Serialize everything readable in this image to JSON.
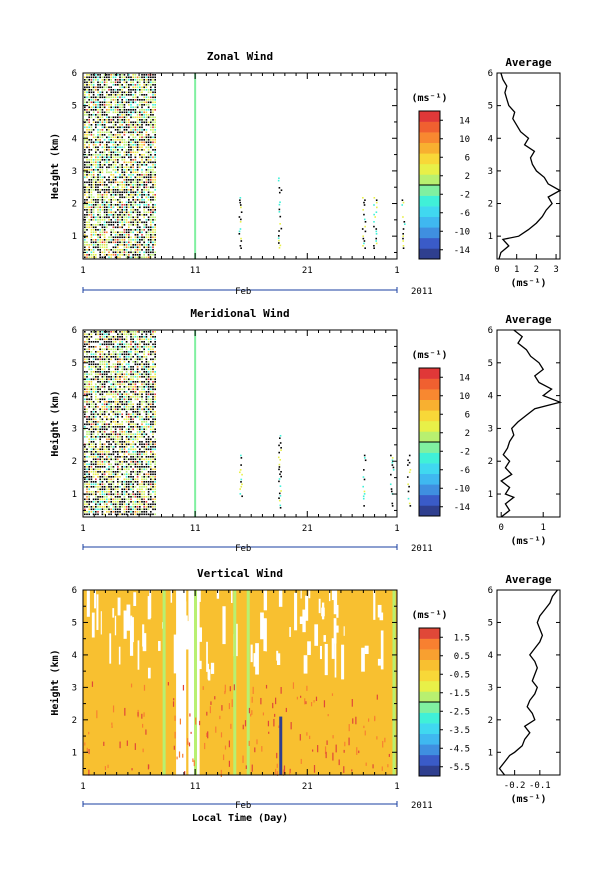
{
  "chart_data": [
    {
      "type": "heatmap",
      "panel": "zonal",
      "title": "Zonal Wind",
      "ylabel": "Height (km)",
      "xlabel": "",
      "ylim": [
        0.3,
        6
      ],
      "yticks": [
        "1",
        "2",
        "3",
        "4",
        "5",
        "6"
      ],
      "xticks": [
        "1",
        "11",
        "21",
        "1"
      ],
      "month_label": "Feb",
      "year_label": "2011",
      "colorbar": {
        "unit_label": "(ms⁻¹)",
        "ticks": [
          "14",
          "10",
          "6",
          "2",
          "-2",
          "-6",
          "-10",
          "-14"
        ],
        "range": [
          -16,
          16
        ],
        "colors": [
          "#2f3f8f",
          "#3a5bc8",
          "#3f8fe0",
          "#3fb8f0",
          "#40d8f0",
          "#40f0d8",
          "#80f0a0",
          "#b8f070",
          "#e8f048",
          "#f8d838",
          "#f8b030",
          "#f88830",
          "#f06030",
          "#e03838"
        ]
      },
      "data_notes": {
        "dense_until_day": 7.5,
        "isolated_spikes_days": [
          11,
          15,
          18.5,
          26,
          27,
          29.5
        ]
      },
      "profile": {
        "title": "Average",
        "xlabel": "(ms⁻¹)",
        "xticks": [
          "0",
          "1",
          "2",
          "3"
        ],
        "xlim": [
          0,
          3.2
        ],
        "yticks": [
          "1",
          "2",
          "3",
          "4",
          "5",
          "6"
        ],
        "heights": [
          0.3,
          0.5,
          0.7,
          0.9,
          1.0,
          1.2,
          1.4,
          1.6,
          1.8,
          2.0,
          2.2,
          2.4,
          2.6,
          2.8,
          3.0,
          3.2,
          3.4,
          3.6,
          3.8,
          4.0,
          4.2,
          4.4,
          4.6,
          4.8,
          5.0,
          5.2,
          5.4,
          5.6,
          5.8,
          6.0
        ],
        "values": [
          0.1,
          0.2,
          0.6,
          0.3,
          1.1,
          1.6,
          2.0,
          2.3,
          2.5,
          2.8,
          2.6,
          3.2,
          2.6,
          2.4,
          2.0,
          1.8,
          1.7,
          1.9,
          1.4,
          1.6,
          1.2,
          1.0,
          0.8,
          0.9,
          0.6,
          0.5,
          0.4,
          0.5,
          0.3,
          0.2
        ]
      }
    },
    {
      "type": "heatmap",
      "panel": "meridional",
      "title": "Meridional Wind",
      "ylabel": "Height (km)",
      "xlabel": "",
      "ylim": [
        0.3,
        6
      ],
      "yticks": [
        "1",
        "2",
        "3",
        "4",
        "5",
        "6"
      ],
      "xticks": [
        "1",
        "11",
        "21",
        "1"
      ],
      "month_label": "Feb",
      "year_label": "2011",
      "colorbar": {
        "unit_label": "(ms⁻¹)",
        "ticks": [
          "14",
          "10",
          "6",
          "2",
          "-2",
          "-6",
          "-10",
          "-14"
        ],
        "range": [
          -16,
          16
        ],
        "colors": [
          "#2f3f8f",
          "#3a5bc8",
          "#3f8fe0",
          "#3fb8f0",
          "#40d8f0",
          "#40f0d8",
          "#80f0a0",
          "#b8f070",
          "#e8f048",
          "#f8d838",
          "#f8b030",
          "#f88830",
          "#f06030",
          "#e03838"
        ]
      },
      "data_notes": {
        "dense_until_day": 7.5,
        "isolated_spikes_days": [
          11,
          15,
          18.5,
          26,
          28.5,
          30
        ]
      },
      "profile": {
        "title": "Average",
        "xlabel": "(ms⁻¹)",
        "xticks": [
          "0",
          "1"
        ],
        "xlim": [
          -0.1,
          1.4
        ],
        "yticks": [
          "1",
          "2",
          "3",
          "4",
          "5",
          "6"
        ],
        "heights": [
          0.3,
          0.5,
          0.7,
          0.9,
          1.0,
          1.2,
          1.4,
          1.6,
          1.8,
          2.0,
          2.2,
          2.4,
          2.6,
          2.8,
          3.0,
          3.2,
          3.4,
          3.6,
          3.8,
          4.0,
          4.2,
          4.4,
          4.6,
          4.8,
          5.0,
          5.2,
          5.4,
          5.6,
          5.8,
          6.0
        ],
        "values": [
          0.0,
          0.2,
          0.1,
          0.3,
          0.1,
          0.2,
          0.0,
          0.25,
          0.1,
          0.2,
          0.05,
          0.15,
          0.2,
          0.3,
          0.25,
          0.4,
          0.6,
          0.8,
          1.4,
          1.0,
          1.2,
          0.9,
          0.8,
          1.0,
          0.9,
          0.7,
          0.6,
          0.4,
          0.5,
          0.3
        ]
      }
    },
    {
      "type": "heatmap",
      "panel": "vertical",
      "title": "Vertical Wind",
      "ylabel": "Height (km)",
      "xlabel": "Local Time (Day)",
      "ylim": [
        0.3,
        6
      ],
      "yticks": [
        "1",
        "2",
        "3",
        "4",
        "5",
        "6"
      ],
      "xticks": [
        "1",
        "11",
        "21",
        "1"
      ],
      "month_label": "Feb",
      "year_label": "2011",
      "colorbar": {
        "unit_label": "(ms⁻¹)",
        "ticks": [
          "1.5",
          "0.5",
          "-0.5",
          "-1.5",
          "-2.5",
          "-3.5",
          "-4.5",
          "-5.5"
        ],
        "range": [
          -6,
          2
        ],
        "colors": [
          "#2f3f8f",
          "#3a5bc8",
          "#3f8fe0",
          "#3fb8f0",
          "#40d8f0",
          "#40f0d8",
          "#80f0a0",
          "#b8f070",
          "#e8f048",
          "#f8d838",
          "#f8c030",
          "#f8a030",
          "#f88030",
          "#e04838"
        ]
      },
      "data_notes": {
        "dominant_value": 0.3,
        "gaps_days": [
          9.5,
          11.5
        ]
      },
      "profile": {
        "title": "Average",
        "xlabel": "(ms⁻¹)",
        "xticks": [
          "-0.2",
          "-0.1"
        ],
        "xlim": [
          -0.27,
          -0.02
        ],
        "yticks": [
          "1",
          "2",
          "3",
          "4",
          "5",
          "6"
        ],
        "heights": [
          0.3,
          0.5,
          0.7,
          0.9,
          1.0,
          1.2,
          1.4,
          1.6,
          1.8,
          2.0,
          2.2,
          2.4,
          2.6,
          2.8,
          3.0,
          3.2,
          3.4,
          3.6,
          3.8,
          4.0,
          4.2,
          4.4,
          4.6,
          4.8,
          5.0,
          5.2,
          5.4,
          5.6,
          5.8,
          6.0
        ],
        "values": [
          -0.24,
          -0.26,
          -0.24,
          -0.22,
          -0.2,
          -0.17,
          -0.16,
          -0.14,
          -0.16,
          -0.12,
          -0.13,
          -0.15,
          -0.14,
          -0.12,
          -0.11,
          -0.13,
          -0.12,
          -0.11,
          -0.12,
          -0.14,
          -0.12,
          -0.1,
          -0.09,
          -0.1,
          -0.11,
          -0.1,
          -0.08,
          -0.06,
          -0.05,
          -0.03
        ]
      }
    }
  ]
}
